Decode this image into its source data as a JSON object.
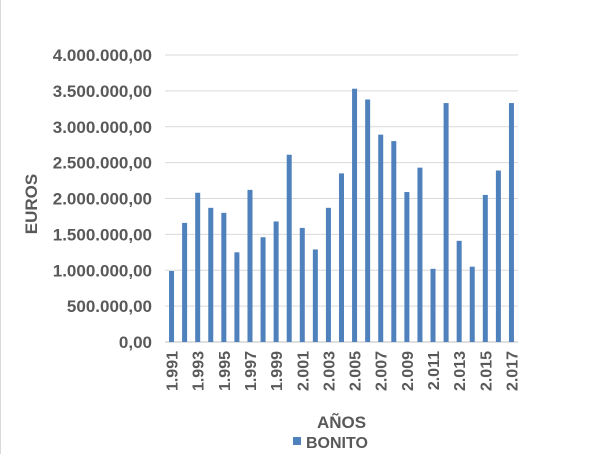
{
  "chart_data": {
    "type": "bar",
    "categories": [
      "1.991",
      "1.992",
      "1.993",
      "1.994",
      "1.995",
      "1.996",
      "1.997",
      "1.998",
      "1.999",
      "2.000",
      "2.001",
      "2.002",
      "2.003",
      "2.004",
      "2.005",
      "2.006",
      "2.007",
      "2.008",
      "2.009",
      "2.010",
      "2.011",
      "2.012",
      "2.013",
      "2.014",
      "2.015",
      "2.016",
      "2.017"
    ],
    "x_tick_labels": [
      "1.991",
      "1.993",
      "1.995",
      "1.997",
      "1.999",
      "2.001",
      "2.003",
      "2.005",
      "2.007",
      "2.009",
      "2.011",
      "2.013",
      "2.015",
      "2.017"
    ],
    "series": [
      {
        "name": "BONITO",
        "color": "#4f81bd",
        "values": [
          990000,
          1660000,
          2080000,
          1870000,
          1800000,
          1250000,
          2120000,
          1460000,
          1680000,
          2610000,
          1590000,
          1290000,
          1870000,
          2350000,
          3530000,
          3380000,
          2890000,
          2800000,
          2090000,
          2430000,
          1020000,
          3330000,
          1410000,
          1050000,
          2050000,
          2390000,
          3330000
        ]
      }
    ],
    "xlabel": "AÑOS",
    "ylabel": "EUROS",
    "ylim": [
      0,
      4000000
    ],
    "y_ticks": [
      0,
      500000,
      1000000,
      1500000,
      2000000,
      2500000,
      3000000,
      3500000,
      4000000
    ],
    "y_tick_labels": [
      "0,00",
      "500.000,00",
      "1.000.000,00",
      "1.500.000,00",
      "2.000.000,00",
      "2.500.000,00",
      "3.000.000,00",
      "3.500.000,00",
      "4.000.000,00"
    ],
    "grid": true,
    "legend_position": "bottom"
  }
}
